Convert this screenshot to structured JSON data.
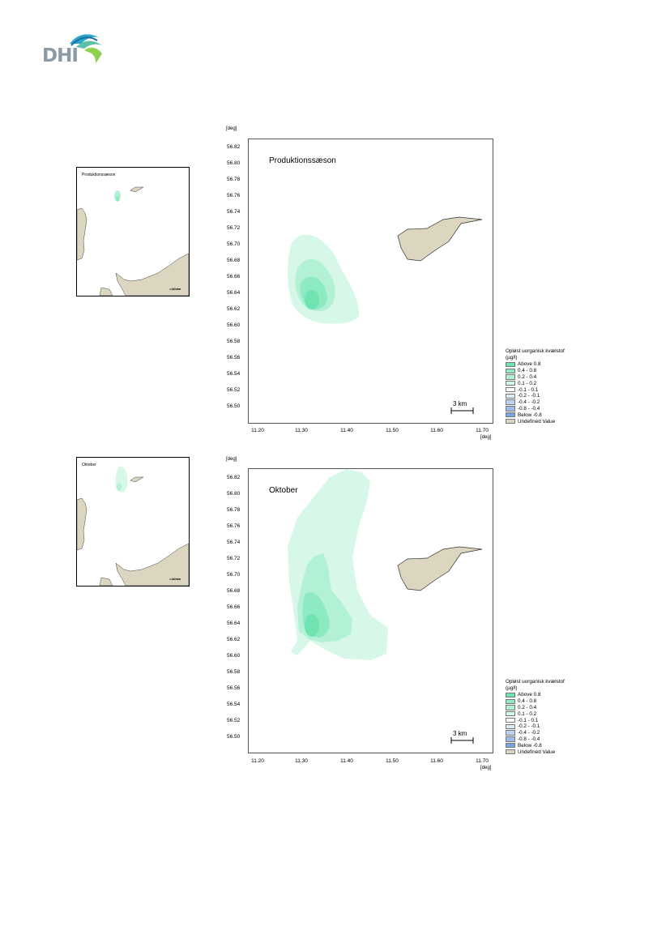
{
  "logo": {
    "text": "DHI"
  },
  "panels": [
    {
      "inset_label": "Produktionssæson",
      "inset_scale": "10 km",
      "title": "Produktionssæson",
      "scale_label": "3 km"
    },
    {
      "inset_label": "Oktober",
      "inset_scale": "10 km",
      "title": "Oktober",
      "scale_label": "3 km"
    }
  ],
  "axes": {
    "unit": "[deg]",
    "y_ticks": [
      "56.82",
      "56.80",
      "56.78",
      "56.76",
      "56.74",
      "56.72",
      "56.70",
      "56.68",
      "56.66",
      "56.64",
      "56.62",
      "56.60",
      "56.58",
      "56.56",
      "56.54",
      "56.52",
      "56.50"
    ],
    "x_ticks": [
      "11.20",
      "11.30",
      "11.40",
      "11.50",
      "11.60",
      "11.70"
    ]
  },
  "legend": {
    "title_line1": "Opløst uorganisk kvælstof",
    "title_line2": "(µg/l)",
    "items": [
      {
        "label": "Above  0.8",
        "color": "#6fe3b0"
      },
      {
        "label": "0.4 -  0.8",
        "color": "#8eeac0"
      },
      {
        "label": "0.2 -  0.4",
        "color": "#b2f1d3"
      },
      {
        "label": "0.1 -  0.2",
        "color": "#d7f8e8"
      },
      {
        "label": "-0.1 -  0.1",
        "color": "#ffffff"
      },
      {
        "label": "-0.2 - -0.1",
        "color": "#dde9f7"
      },
      {
        "label": "-0.4 - -0.2",
        "color": "#bcd3f0"
      },
      {
        "label": "-0.8 - -0.4",
        "color": "#9bbdea"
      },
      {
        "label": "Below -0.8",
        "color": "#78a6e3"
      },
      {
        "label": "Undefined Value",
        "color": "#dcd6c0"
      }
    ]
  }
}
